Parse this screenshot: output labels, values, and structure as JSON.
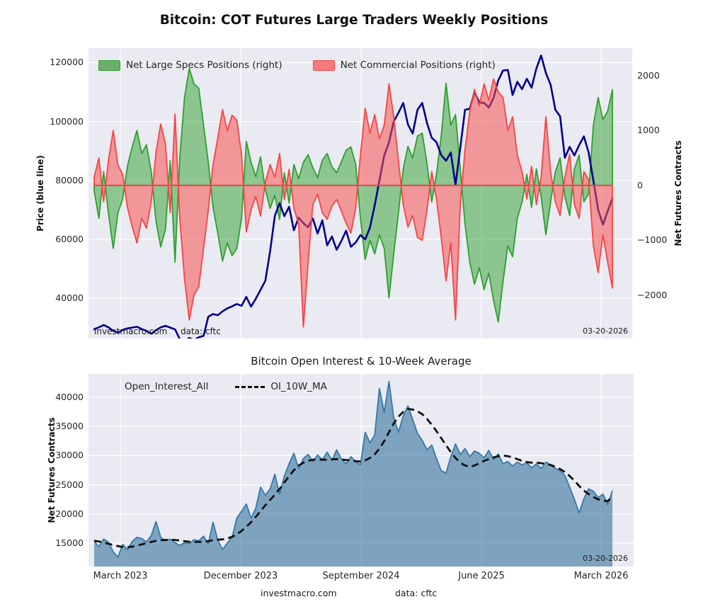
{
  "title": "Bitcoin: COT Futures Large Traders Weekly Positions",
  "colors": {
    "axes_background": "#eaeaf2",
    "grid": "#ffffff",
    "specs_stroke": "#2da02d",
    "specs_fill": "rgba(45,160,45,0.5)",
    "commercials_stroke": "#f54545",
    "commercials_fill": "rgba(245,80,80,0.55)",
    "price_line": "#00008b",
    "oi_stroke": "#3679a9",
    "oi_fill": "rgba(60,120,160,0.62)",
    "ma_line": "#111111"
  },
  "top_chart": {
    "legend": [
      {
        "label": "Net Large Specs Positions (right)",
        "swatch_fill": "#6cae6c",
        "swatch_edge": "#2da02d"
      },
      {
        "label": "Net Commercial Positions (right)",
        "swatch_fill": "#f47c7c",
        "swatch_edge": "#f54545"
      }
    ],
    "ylabel_left": "Price (blue line)",
    "ylabel_right": "Net Futures Contracts",
    "yticks_left": {
      "values": [
        40000,
        60000,
        80000,
        100000,
        120000
      ],
      "labels": [
        "40000",
        "60000",
        "80000",
        "100000",
        "120000"
      ]
    },
    "yticks_right": {
      "values": [
        -2000,
        -1000,
        0,
        1000,
        2000
      ],
      "labels": [
        "−2000",
        "−1000",
        "0",
        "1000",
        "2000"
      ]
    },
    "watermark": "investmacro.com",
    "data_source": "data: cftc",
    "date_label": "03-20-2026"
  },
  "bottom_chart": {
    "title": "Bitcoin Open Interest & 10-Week Average",
    "legend": [
      {
        "label": "Open_Interest_All",
        "swatch_fill": "#6da4c0",
        "swatch_edge": "#3679a9"
      },
      {
        "label": "OI_10W_MA"
      }
    ],
    "ylabel": "Net Futures Contracts",
    "yticks": {
      "values": [
        15000,
        20000,
        25000,
        30000,
        35000,
        40000
      ],
      "labels": [
        "15000",
        "20000",
        "25000",
        "30000",
        "35000",
        "40000"
      ]
    },
    "date_label": "03-20-2026",
    "footer_watermark": "investmacro.com",
    "footer_source": "data: cftc"
  },
  "x_axis": {
    "labels": [
      "March 2023",
      "December 2023",
      "September 2024",
      "June 2025",
      "March 2026"
    ],
    "fracs": [
      0.0505,
      0.2828,
      0.515,
      0.7473,
      0.978
    ]
  },
  "chart_data": [
    {
      "type": "area",
      "title": "Bitcoin: COT Futures Large Traders Weekly Positions",
      "x_range": [
        "March 2023",
        "March 2026"
      ],
      "ylim_left": [
        26400,
        124900
      ],
      "ylim_right": [
        -2790,
        2500
      ],
      "grid": true,
      "legend_position": "top-left",
      "series": [
        {
          "name": "Net Large Specs Positions (right)",
          "axis": "right",
          "kind": "area",
          "values": [
            -100,
            -600,
            250,
            -500,
            -1150,
            -500,
            -250,
            350,
            700,
            1000,
            580,
            740,
            250,
            -650,
            -1120,
            -800,
            450,
            -1400,
            500,
            1600,
            2130,
            1850,
            1770,
            1100,
            420,
            -400,
            -870,
            -1380,
            -1050,
            -1280,
            -1150,
            -600,
            800,
            420,
            160,
            520,
            -80,
            -420,
            -180,
            -620,
            230,
            -320,
            380,
            120,
            420,
            560,
            320,
            140,
            460,
            580,
            340,
            230,
            430,
            640,
            700,
            380,
            -600,
            -1350,
            -1000,
            -1250,
            -900,
            -1150,
            -2050,
            -1250,
            -500,
            300,
            710,
            500,
            900,
            950,
            400,
            -300,
            200,
            900,
            1860,
            1100,
            1290,
            300,
            -700,
            -1400,
            -1800,
            -1500,
            -1900,
            -1600,
            -2100,
            -2490,
            -1750,
            -1100,
            -1300,
            -600,
            -300,
            200,
            -400,
            300,
            -200,
            -900,
            -300,
            250,
            500,
            -200,
            -550,
            300,
            550,
            -300,
            -150,
            1100,
            1600,
            1200,
            1350,
            1742
          ]
        },
        {
          "name": "Net Commercial Positions (right)",
          "axis": "right",
          "kind": "area",
          "values": [
            150,
            500,
            -300,
            450,
            1000,
            370,
            200,
            -400,
            -750,
            -1050,
            -600,
            -780,
            -300,
            600,
            1120,
            750,
            -500,
            1300,
            -600,
            -1700,
            -2450,
            -2000,
            -1850,
            -1150,
            -450,
            380,
            864,
            1380,
            1000,
            1277,
            1187,
            550,
            -850,
            -450,
            -200,
            -560,
            60,
            380,
            150,
            580,
            -260,
            290,
            -420,
            -700,
            -2580,
            -1400,
            -350,
            -160,
            -500,
            -620,
            -380,
            -260,
            -470,
            -690,
            -870,
            -420,
            550,
            1406,
            950,
            1290,
            850,
            1100,
            1850,
            1250,
            450,
            -350,
            -760,
            -550,
            -950,
            -1000,
            -450,
            250,
            -250,
            -950,
            -1742,
            -1050,
            -2452,
            -350,
            650,
            1350,
            1750,
            1450,
            1850,
            1550,
            1940,
            1700,
            1600,
            1000,
            1250,
            550,
            250,
            -250,
            350,
            -350,
            150,
            1251,
            250,
            -300,
            -550,
            150,
            570,
            -350,
            -600,
            250,
            100,
            -1100,
            -1590,
            -900,
            -1400,
            -1871
          ]
        },
        {
          "name": "Price (blue line)",
          "axis": "left",
          "kind": "line",
          "values": [
            29500,
            30200,
            31000,
            30200,
            29000,
            28400,
            29300,
            29800,
            30100,
            30400,
            29600,
            29000,
            28000,
            29200,
            30200,
            30700,
            30100,
            29500,
            26200,
            25600,
            26600,
            25900,
            26800,
            27300,
            33800,
            34700,
            34300,
            35600,
            36600,
            37300,
            38100,
            37500,
            40500,
            37200,
            39900,
            42900,
            46000,
            56000,
            68000,
            72300,
            67900,
            71100,
            63100,
            67400,
            65500,
            64200,
            67100,
            62000,
            66500,
            58000,
            61000,
            56500,
            59500,
            63000,
            57500,
            59000,
            61500,
            60000,
            64000,
            71500,
            80000,
            88500,
            93000,
            100000,
            103000,
            106300,
            99000,
            95900,
            104000,
            106300,
            99500,
            94500,
            93000,
            88600,
            86700,
            89500,
            78500,
            91000,
            104000,
            104300,
            110000,
            106500,
            106300,
            104800,
            108000,
            114000,
            117300,
            117500,
            109000,
            113500,
            111000,
            114500,
            111500,
            118000,
            122400,
            116500,
            112500,
            104000,
            101800,
            87700,
            91400,
            88500,
            92000,
            95000,
            89500,
            80000,
            70000,
            65000,
            69600,
            74000
          ]
        }
      ]
    },
    {
      "type": "area",
      "title": "Bitcoin Open Interest & 10-Week Average",
      "x_range": [
        "March 2023",
        "March 2026"
      ],
      "ylim": [
        11000,
        44000
      ],
      "grid": true,
      "legend_position": "top-left",
      "series": [
        {
          "name": "Open_Interest_All",
          "kind": "area",
          "values": [
            15300,
            14400,
            15700,
            15200,
            13500,
            12600,
            14800,
            13900,
            15300,
            16000,
            15800,
            15200,
            16300,
            18700,
            16000,
            15400,
            15700,
            15100,
            14600,
            15100,
            14900,
            15600,
            15400,
            16200,
            14900,
            18600,
            15500,
            13900,
            15000,
            16000,
            19300,
            20500,
            21700,
            19300,
            21000,
            24600,
            23200,
            24300,
            26800,
            23400,
            26500,
            28600,
            30400,
            27800,
            29500,
            30200,
            29000,
            30100,
            29300,
            30600,
            29200,
            31000,
            29400,
            28600,
            29800,
            29000,
            28400,
            34000,
            32200,
            33500,
            41500,
            37400,
            42700,
            36500,
            34000,
            36800,
            38500,
            36200,
            33800,
            32600,
            31000,
            31800,
            29500,
            27400,
            27000,
            29800,
            32000,
            30200,
            31200,
            29800,
            30800,
            30400,
            29600,
            30900,
            29300,
            30300,
            28600,
            29000,
            28200,
            28900,
            28400,
            28800,
            27900,
            28600,
            27800,
            28900,
            28400,
            27800,
            27400,
            26600,
            24600,
            22500,
            20200,
            22600,
            24300,
            23900,
            22800,
            23400,
            21600,
            24000
          ]
        },
        {
          "name": "OI_10W_MA",
          "kind": "dashed-line",
          "values": [
            15400,
            15300,
            15100,
            14900,
            14700,
            14500,
            14350,
            14300,
            14400,
            14600,
            14800,
            15000,
            15200,
            15400,
            15500,
            15550,
            15600,
            15550,
            15450,
            15350,
            15250,
            15200,
            15200,
            15250,
            15350,
            15500,
            15600,
            15650,
            15800,
            16100,
            16500,
            17100,
            17800,
            18600,
            19500,
            20500,
            21500,
            22400,
            23300,
            24300,
            25400,
            26500,
            27500,
            28300,
            28800,
            29100,
            29300,
            29350,
            29300,
            29300,
            29350,
            29400,
            29350,
            29250,
            29150,
            29050,
            29000,
            29200,
            29600,
            30200,
            31200,
            32500,
            34000,
            35500,
            36700,
            37500,
            38000,
            37900,
            37600,
            37100,
            36300,
            35300,
            34200,
            33000,
            31800,
            30600,
            29600,
            28800,
            28300,
            28100,
            28300,
            28700,
            29100,
            29400,
            29700,
            29900,
            30000,
            29900,
            29700,
            29400,
            29100,
            28900,
            28800,
            28800,
            28700,
            28600,
            28400,
            28100,
            27700,
            27200,
            26500,
            25700,
            24800,
            24000,
            23400,
            22900,
            22500,
            22300,
            22200,
            23000
          ]
        }
      ]
    }
  ]
}
